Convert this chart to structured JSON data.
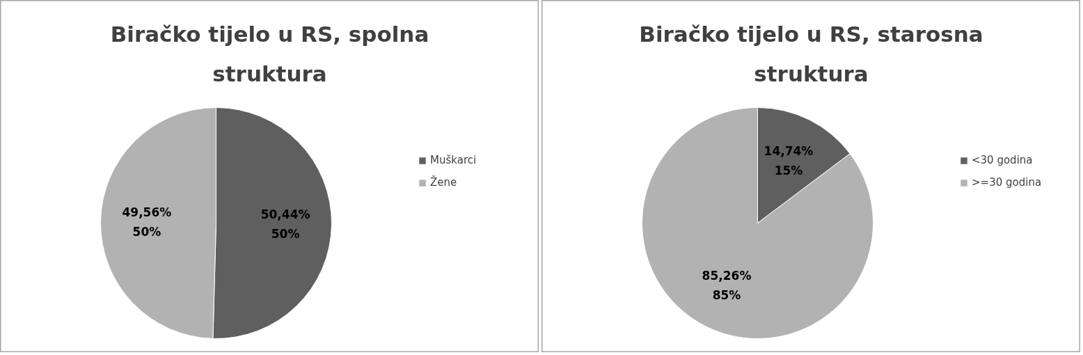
{
  "chart_data": [
    {
      "type": "pie",
      "title": "Biračko tijelo u RS, spolna struktura",
      "categories": [
        "Muškarci",
        "Žene"
      ],
      "values": [
        50.44,
        49.56
      ],
      "colors": [
        "#5f5f5f",
        "#b2b2b2"
      ],
      "value_labels": [
        "50,44%\n50%",
        "49,56%\n50%"
      ],
      "legend": "right"
    },
    {
      "type": "pie",
      "title": "Biračko tijelo u RS, starosna struktura",
      "categories": [
        "<30 godina",
        ">=30 godina"
      ],
      "values": [
        14.74,
        85.26
      ],
      "colors": [
        "#5f5f5f",
        "#b2b2b2"
      ],
      "value_labels": [
        "14,74%\n15%",
        "85,26%\n85%"
      ],
      "legend": "right"
    }
  ]
}
